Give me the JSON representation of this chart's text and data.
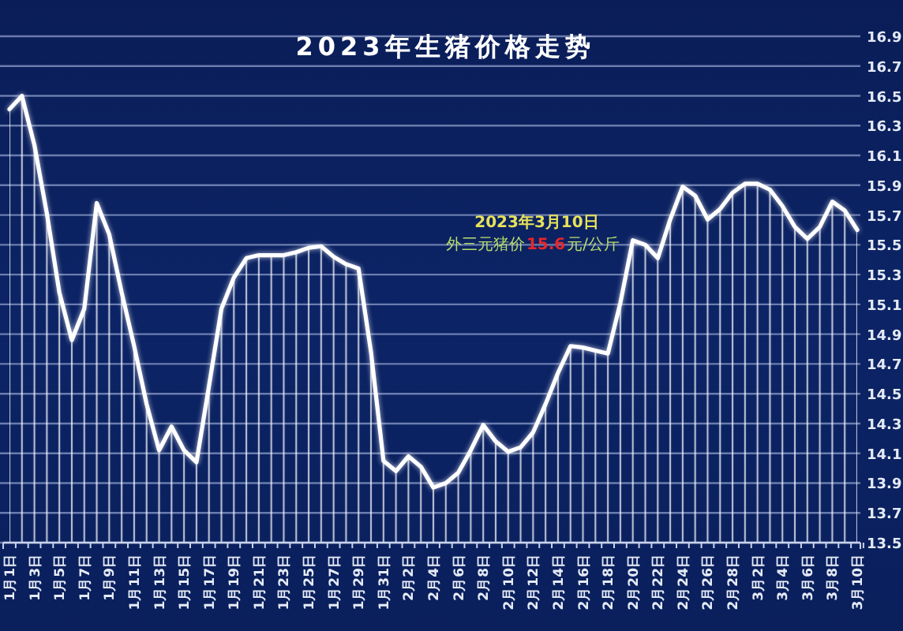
{
  "chart_data": {
    "type": "area",
    "title": "2023年生猪价格走势",
    "categories": [
      "1月1日",
      null,
      "1月3日",
      null,
      "1月5日",
      null,
      "1月7日",
      null,
      "1月9日",
      null,
      "1月11日",
      null,
      "1月13日",
      null,
      "1月15日",
      null,
      "1月17日",
      null,
      "1月19日",
      null,
      "1月21日",
      null,
      "1月23日",
      null,
      "1月25日",
      null,
      "1月27日",
      null,
      "1月29日",
      null,
      "1月31日",
      null,
      "2月2日",
      null,
      "2月4日",
      null,
      "2月6日",
      null,
      "2月8日",
      null,
      "2月10日",
      null,
      "2月12日",
      null,
      "2月14日",
      null,
      "2月16日",
      null,
      "2月18日",
      null,
      "2月20日",
      null,
      "2月22日",
      null,
      "2月24日",
      null,
      "2月26日",
      null,
      "2月28日",
      null,
      "3月2日",
      null,
      "3月4日",
      null,
      "3月6日",
      null,
      "3月8日",
      null,
      "3月10日"
    ],
    "series": [
      {
        "color": "#ffffff",
        "values": [
          16.41,
          16.5,
          16.17,
          15.71,
          15.18,
          14.86,
          15.07,
          15.78,
          15.57,
          15.18,
          14.82,
          14.43,
          14.12,
          14.28,
          14.12,
          14.04,
          14.55,
          15.07,
          15.28,
          15.41,
          15.43,
          15.43,
          15.43,
          15.45,
          15.48,
          15.49,
          15.42,
          15.37,
          15.34,
          14.78,
          14.05,
          13.98,
          14.08,
          14.01,
          13.87,
          13.9,
          13.97,
          14.12,
          14.29,
          14.18,
          14.11,
          14.14,
          14.24,
          14.43,
          14.64,
          14.82,
          14.81,
          14.79,
          14.77,
          15.11,
          15.53,
          15.5,
          15.41,
          15.67,
          15.89,
          15.83,
          15.67,
          15.74,
          15.85,
          15.91,
          15.91,
          15.87,
          15.76,
          15.62,
          15.54,
          15.62,
          15.79,
          15.73,
          15.6
        ]
      }
    ],
    "ylim": [
      13.5,
      16.9
    ],
    "yticks": [
      13.5,
      13.7,
      13.9,
      14.1,
      14.3,
      14.5,
      14.7,
      14.9,
      15.1,
      15.3,
      15.5,
      15.7,
      15.9,
      16.1,
      16.3,
      16.5,
      16.7,
      16.9
    ],
    "grid": "y",
    "annotations": [
      "2023年3月10日",
      "外三元猪价",
      "15.6",
      "元/公斤"
    ]
  }
}
